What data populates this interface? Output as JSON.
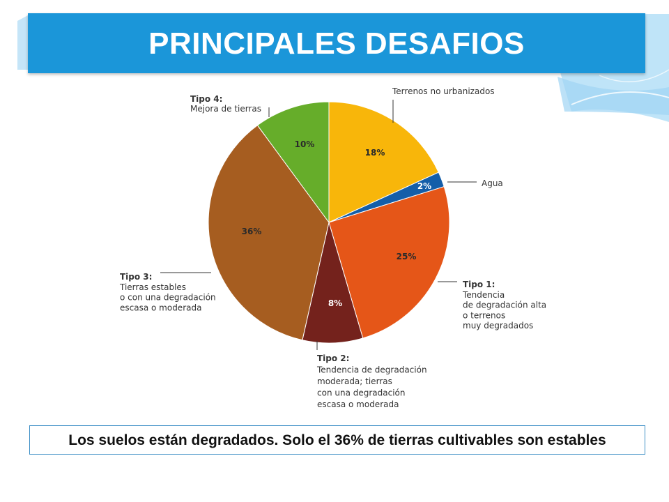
{
  "slide": {
    "title": "PRINCIPALES DESAFIOS",
    "caption": "Los suelos están degradados. Solo el 36% de tierras cultivables son estables"
  },
  "colors": {
    "title_bar": "#1b96d9",
    "caption_border": "#3e8fc6"
  },
  "chart_data": {
    "type": "pie",
    "start": "12 o'clock",
    "direction": "clockwise",
    "slices": [
      {
        "value_label": "18%",
        "value": 18,
        "color": "#f8b60a",
        "label": [
          "Terrenos no urbanizados"
        ]
      },
      {
        "value_label": "2%",
        "value": 2,
        "color": "#145ea9",
        "label": [
          "Agua"
        ]
      },
      {
        "value_label": "25%",
        "value": 25,
        "color": "#e55618",
        "label": [
          "Tipo 1:",
          "Tendencia",
          "de degradación alta",
          "o terrenos",
          "muy degradados"
        ]
      },
      {
        "value_label": "8%",
        "value": 8,
        "color": "#74221c",
        "label": [
          "Tipo 2:",
          "Tendencia de degradación",
          "moderada; tierras",
          "con una degradación",
          "escasa o moderada"
        ]
      },
      {
        "value_label": "36%",
        "value": 36,
        "color": "#a65d20",
        "label": [
          "Tipo 3:",
          "Tierras estables",
          "o con una degradación",
          "escasa o moderada"
        ]
      },
      {
        "value_label": "10%",
        "value": 10,
        "color": "#66ad2a",
        "label": [
          "Tipo 4:",
          "Mejora de tierras"
        ]
      }
    ]
  }
}
